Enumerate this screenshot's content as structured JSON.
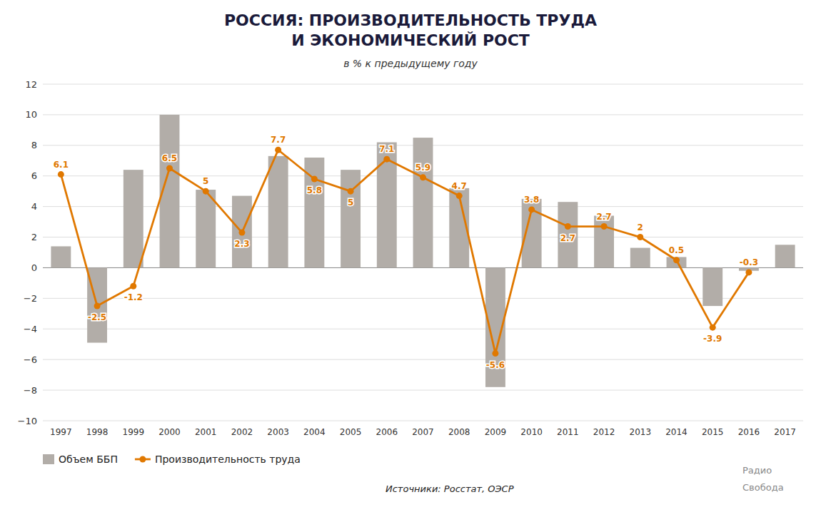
{
  "chart_data": {
    "type": "bar",
    "title": [
      "РОССИЯ: ПРОИЗВОДИТЕЛЬНОСТЬ ТРУДА",
      "И ЭКОНОМИЧЕСКИЙ РОСТ"
    ],
    "subtitle": "в % к предыдущему году",
    "categories": [
      1997,
      1998,
      1999,
      2000,
      2001,
      2002,
      2003,
      2004,
      2005,
      2006,
      2007,
      2008,
      2009,
      2010,
      2011,
      2012,
      2013,
      2014,
      2015,
      2016,
      2017
    ],
    "series": [
      {
        "name": "Объем ББП",
        "type": "bar",
        "color": "#b2ada8",
        "values": [
          1.4,
          -4.9,
          6.4,
          10.0,
          5.1,
          4.7,
          7.3,
          7.2,
          6.4,
          8.2,
          8.5,
          5.2,
          -7.8,
          4.5,
          4.3,
          3.4,
          1.3,
          0.7,
          -2.5,
          -0.2,
          1.5
        ]
      },
      {
        "name": "Производительность труда",
        "type": "line",
        "color": "#e07800",
        "marker": "circle",
        "data_labels": true,
        "values": [
          6.1,
          -2.5,
          -1.2,
          6.5,
          5.0,
          2.3,
          7.7,
          5.8,
          5.0,
          7.1,
          5.9,
          4.7,
          -5.6,
          3.8,
          2.7,
          2.7,
          2.0,
          0.5,
          -3.9,
          -0.3,
          null
        ]
      }
    ],
    "ylim": [
      -10,
      12
    ],
    "yticks": [
      {
        "value": -10,
        "label": "−10"
      },
      {
        "value": -8,
        "label": "−8"
      },
      {
        "value": -6,
        "label": "−6"
      },
      {
        "value": -4,
        "label": "−4"
      },
      {
        "value": -2,
        "label": "−2"
      },
      0,
      2,
      4,
      6,
      8,
      10,
      12
    ],
    "grid": true,
    "legend": "lower left",
    "source": "Источники: Росстат, ОЭСР",
    "annotations": [
      "Радио",
      "Свобода"
    ]
  }
}
